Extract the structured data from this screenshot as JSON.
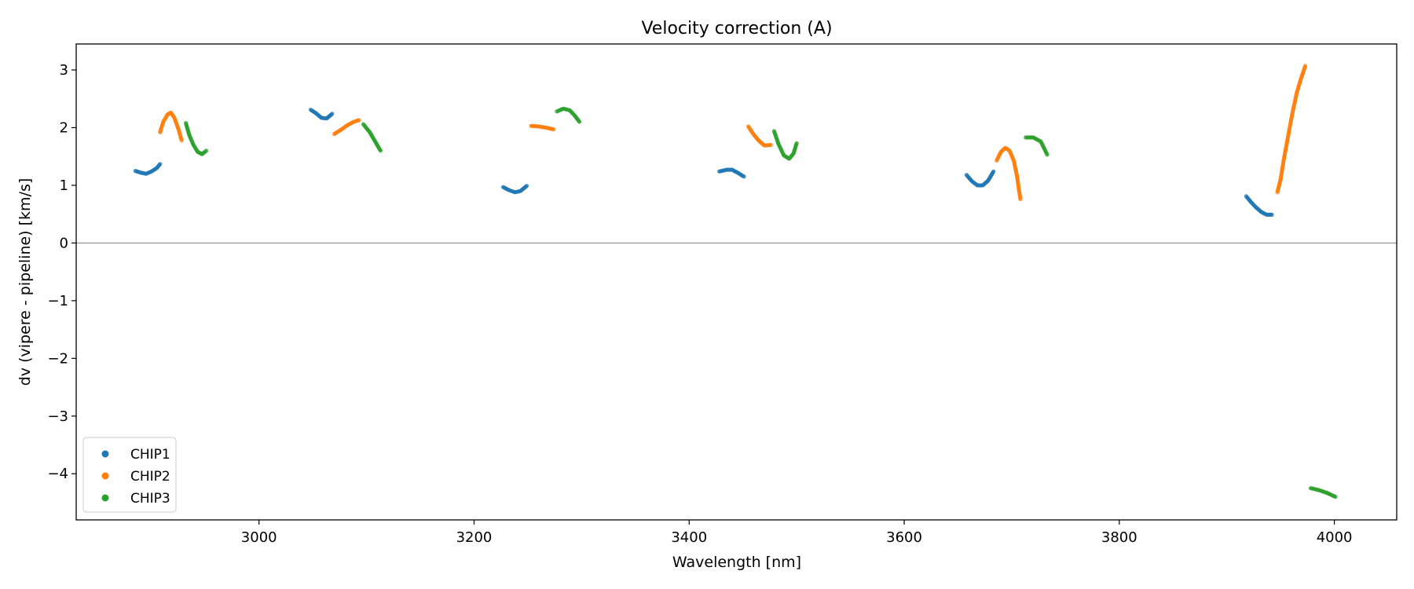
{
  "chart_data": {
    "type": "scatter",
    "title": "Velocity correction (A)",
    "xlabel": "Wavelength [nm]",
    "ylabel": "dv (vipere - pipeline) [km/s]",
    "xlim": [
      2830,
      4058
    ],
    "ylim": [
      -4.8,
      3.45
    ],
    "xticks": [
      3000,
      3200,
      3400,
      3600,
      3800,
      4000
    ],
    "yticks": [
      -4,
      -3,
      -2,
      -1,
      0,
      1,
      2,
      3
    ],
    "ytick_labels": [
      "−4",
      "−3",
      "−2",
      "−1",
      "0",
      "1",
      "2",
      "3"
    ],
    "hline": 0,
    "legend_position": "lower-left",
    "series": [
      {
        "name": "CHIP1",
        "color": "#1f77b4",
        "segments": [
          [
            [
              2885,
              1.25
            ],
            [
              2890,
              1.22
            ],
            [
              2895,
              1.2
            ],
            [
              2900,
              1.24
            ],
            [
              2905,
              1.3
            ],
            [
              2908,
              1.37
            ]
          ],
          [
            [
              3048,
              2.31
            ],
            [
              3053,
              2.25
            ],
            [
              3058,
              2.17
            ],
            [
              3063,
              2.16
            ],
            [
              3068,
              2.24
            ]
          ],
          [
            [
              3227,
              0.97
            ],
            [
              3232,
              0.92
            ],
            [
              3238,
              0.88
            ],
            [
              3243,
              0.9
            ],
            [
              3249,
              0.99
            ]
          ],
          [
            [
              3428,
              1.24
            ],
            [
              3435,
              1.27
            ],
            [
              3440,
              1.27
            ],
            [
              3445,
              1.22
            ],
            [
              3451,
              1.15
            ]
          ],
          [
            [
              3658,
              1.18
            ],
            [
              3663,
              1.07
            ],
            [
              3668,
              1.0
            ],
            [
              3673,
              1.0
            ],
            [
              3678,
              1.08
            ],
            [
              3683,
              1.24
            ]
          ],
          [
            [
              3918,
              0.81
            ],
            [
              3922,
              0.72
            ],
            [
              3927,
              0.62
            ],
            [
              3932,
              0.54
            ],
            [
              3937,
              0.49
            ],
            [
              3942,
              0.49
            ]
          ]
        ]
      },
      {
        "name": "CHIP2",
        "color": "#ff7f0e",
        "segments": [
          [
            [
              2908,
              1.92
            ],
            [
              2911,
              2.1
            ],
            [
              2915,
              2.23
            ],
            [
              2918,
              2.26
            ],
            [
              2921,
              2.18
            ],
            [
              2925,
              1.98
            ],
            [
              2928,
              1.78
            ]
          ],
          [
            [
              3070,
              1.89
            ],
            [
              3076,
              1.96
            ],
            [
              3082,
              2.04
            ],
            [
              3088,
              2.1
            ],
            [
              3093,
              2.13
            ]
          ],
          [
            [
              3253,
              2.03
            ],
            [
              3260,
              2.02
            ],
            [
              3267,
              2.0
            ],
            [
              3274,
              1.97
            ]
          ],
          [
            [
              3455,
              2.02
            ],
            [
              3460,
              1.88
            ],
            [
              3465,
              1.77
            ],
            [
              3470,
              1.69
            ],
            [
              3476,
              1.7
            ]
          ],
          [
            [
              3686,
              1.43
            ],
            [
              3690,
              1.58
            ],
            [
              3694,
              1.65
            ],
            [
              3698,
              1.6
            ],
            [
              3702,
              1.42
            ],
            [
              3705,
              1.15
            ],
            [
              3708,
              0.76
            ]
          ],
          [
            [
              3947,
              0.88
            ],
            [
              3950,
              1.1
            ],
            [
              3953,
              1.45
            ],
            [
              3957,
              1.85
            ],
            [
              3961,
              2.25
            ],
            [
              3965,
              2.6
            ],
            [
              3969,
              2.85
            ],
            [
              3973,
              3.07
            ]
          ]
        ]
      },
      {
        "name": "CHIP3",
        "color": "#2ca02c",
        "segments": [
          [
            [
              2932,
              2.08
            ],
            [
              2935,
              1.88
            ],
            [
              2939,
              1.7
            ],
            [
              2943,
              1.58
            ],
            [
              2947,
              1.54
            ],
            [
              2951,
              1.6
            ]
          ],
          [
            [
              3097,
              2.06
            ],
            [
              3103,
              1.92
            ],
            [
              3108,
              1.76
            ],
            [
              3113,
              1.6
            ]
          ],
          [
            [
              3277,
              2.28
            ],
            [
              3283,
              2.33
            ],
            [
              3289,
              2.3
            ],
            [
              3294,
              2.2
            ],
            [
              3298,
              2.1
            ]
          ],
          [
            [
              3479,
              1.94
            ],
            [
              3483,
              1.72
            ],
            [
              3488,
              1.52
            ],
            [
              3493,
              1.46
            ],
            [
              3497,
              1.55
            ],
            [
              3500,
              1.73
            ]
          ],
          [
            [
              3713,
              1.83
            ],
            [
              3720,
              1.83
            ],
            [
              3727,
              1.76
            ],
            [
              3733,
              1.53
            ]
          ],
          [
            [
              3978,
              -4.25
            ],
            [
              3985,
              -4.28
            ],
            [
              3993,
              -4.33
            ],
            [
              4001,
              -4.4
            ]
          ]
        ]
      }
    ]
  }
}
